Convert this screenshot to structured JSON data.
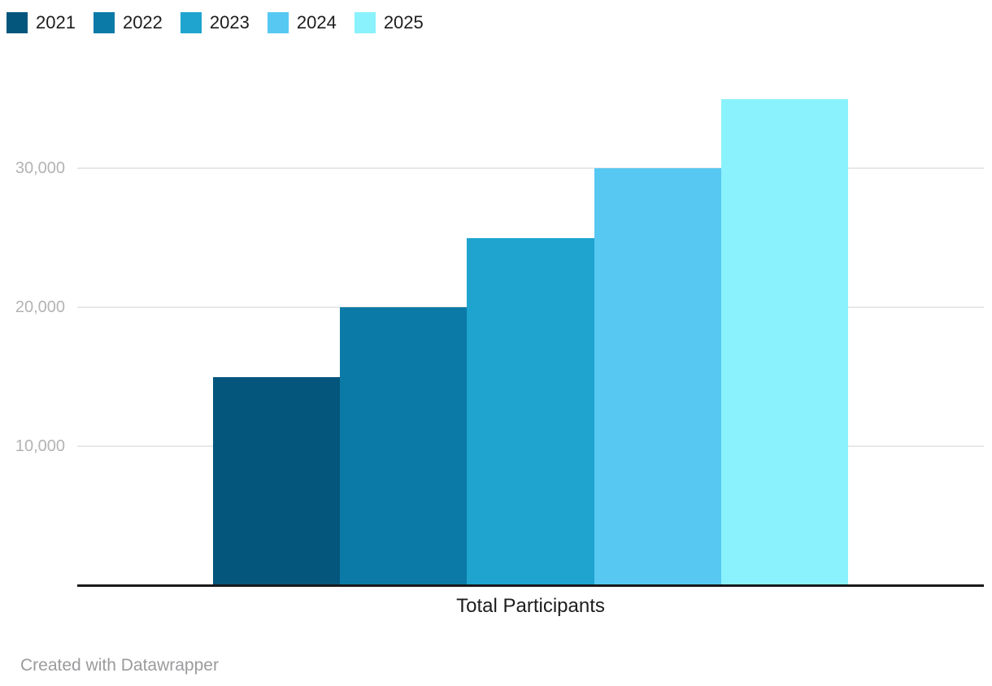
{
  "footer": {
    "credit": "Created with Datawrapper"
  },
  "chart_data": {
    "type": "bar",
    "title": "",
    "categories": [
      "Total Participants"
    ],
    "series": [
      {
        "name": "2021",
        "values": [
          15000
        ],
        "color": "#04567c"
      },
      {
        "name": "2022",
        "values": [
          20000
        ],
        "color": "#0b7aa6"
      },
      {
        "name": "2023",
        "values": [
          25000
        ],
        "color": "#1ea4cf"
      },
      {
        "name": "2024",
        "values": [
          30000
        ],
        "color": "#56c8f2"
      },
      {
        "name": "2025",
        "values": [
          35000
        ],
        "color": "#8af2fc"
      }
    ],
    "xlabel": "Total Participants",
    "ylabel": "",
    "ylim": [
      0,
      35000
    ],
    "yticks": [
      {
        "value": 10000,
        "label": "10,000"
      },
      {
        "value": 20000,
        "label": "20,000"
      },
      {
        "value": 30000,
        "label": "30,000"
      }
    ],
    "grid": true,
    "legend_position": "top-left",
    "grid_color": "#e8e8e8",
    "axis_color": "#18191b",
    "tick_label_color": "#b3b3b6",
    "text_color": "#1d1d1f"
  }
}
